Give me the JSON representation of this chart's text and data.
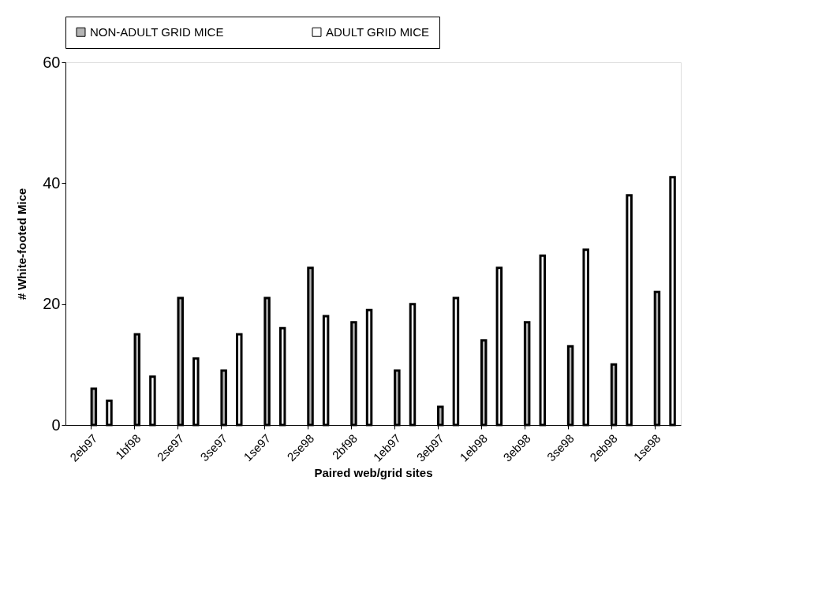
{
  "chart_data": {
    "type": "bar",
    "xlabel": "Paired web/grid sites",
    "ylabel": "# White-footed Mice",
    "categories": [
      "2eb97",
      "1bf98",
      "2se97",
      "3se97",
      "1se97",
      "2se98",
      "2bf98",
      "1eb97",
      "3eb97",
      "1eb98",
      "3eb98",
      "3se98",
      "2eb98",
      "1se98"
    ],
    "series": [
      {
        "name": "NON-ADULT GRID MICE",
        "color": "#b4b4b4",
        "values": [
          6,
          15,
          21,
          9,
          21,
          26,
          17,
          9,
          3,
          14,
          17,
          13,
          10,
          22
        ]
      },
      {
        "name": "ADULT GRID MICE",
        "color": "#ffffff",
        "values": [
          4,
          8,
          11,
          15,
          16,
          18,
          19,
          20,
          21,
          26,
          28,
          29,
          38,
          41
        ]
      }
    ],
    "ylim": [
      0,
      60
    ],
    "yticks": [
      0,
      20,
      40,
      60
    ],
    "grid": false,
    "legend": "top"
  }
}
